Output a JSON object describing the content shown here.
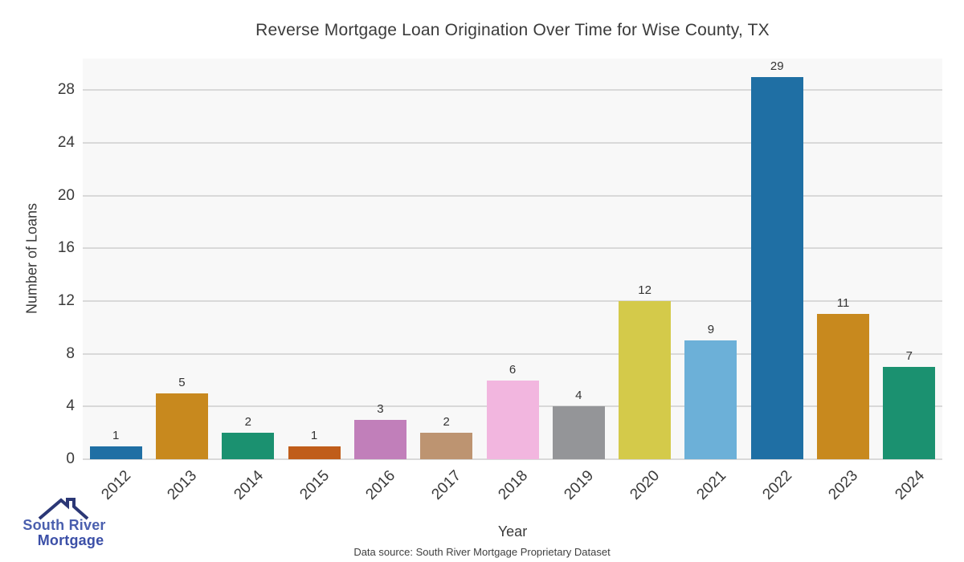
{
  "title": "Reverse Mortgage Loan Origination Over Time for Wise County, TX",
  "chart_data": {
    "type": "bar",
    "categories": [
      "2012",
      "2013",
      "2014",
      "2015",
      "2016",
      "2017",
      "2018",
      "2019",
      "2020",
      "2021",
      "2022",
      "2023",
      "2024"
    ],
    "values": [
      1,
      5,
      2,
      1,
      3,
      2,
      6,
      4,
      12,
      9,
      29,
      11,
      7
    ],
    "bar_colors": [
      "#1f6fa4",
      "#c8891e",
      "#1b9170",
      "#c05d1a",
      "#c17fba",
      "#bd9471",
      "#f2b6df",
      "#949598",
      "#d4ca4a",
      "#6cb0d8",
      "#1f6fa4",
      "#c8891e",
      "#1b9170"
    ],
    "bar_value_labels": [
      "1",
      "5",
      "2",
      "1",
      "3",
      "2",
      "6",
      "4",
      "12",
      "9",
      "29",
      "11",
      "7"
    ],
    "title": "Reverse Mortgage Loan Origination Over Time for Wise County, TX",
    "xlabel": "Year",
    "ylabel": "Number of Loans",
    "yticks": [
      0,
      4,
      8,
      12,
      16,
      20,
      24,
      28
    ],
    "ylim": [
      0,
      30.4
    ],
    "grid": "horizontal",
    "legend": "none",
    "plot_bg_color": "#f8f8f8",
    "grid_color": "#d9d9d9"
  },
  "footer": {
    "source_text": "Data source: South River Mortgage Proprietary Dataset"
  },
  "logo": {
    "line1": "South River",
    "line2": "Mortgage",
    "line1_color": "#4a5fae",
    "line2_color": "#3b4fa7",
    "roof_color": "#2b3776",
    "name": "South River Mortgage logo"
  }
}
